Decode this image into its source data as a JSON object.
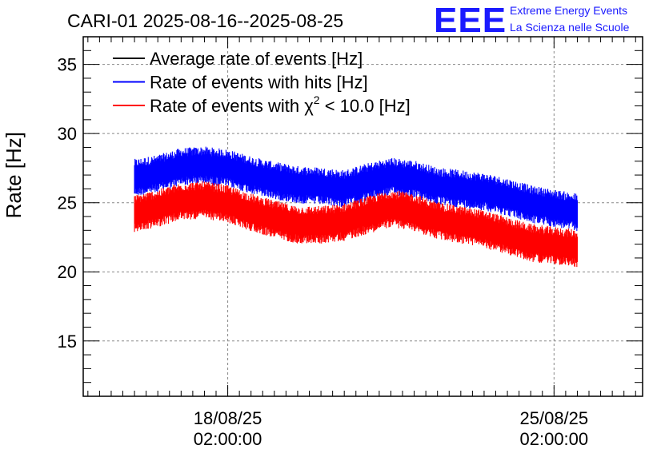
{
  "chart_data": {
    "type": "line",
    "title": "CARI-01 2025-08-16--2025-08-25",
    "ylabel": "Rate [Hz]",
    "xlabel": "",
    "ylim": [
      11,
      37
    ],
    "y_ticks": [
      15,
      20,
      25,
      30,
      35
    ],
    "x_ticks": [
      {
        "date": "18/08/25",
        "time": "02:00:00",
        "day": 2.0
      },
      {
        "date": "25/08/25",
        "time": "02:00:00",
        "day": 9.0
      }
    ],
    "xlim_days": [
      -1.1,
      10.9
    ],
    "grid": true,
    "legend_position": "top-left",
    "legend": [
      {
        "label_pre": "Average rate of events [Hz]",
        "chi": "",
        "sup": "",
        "label_post": "",
        "color": "#000000"
      },
      {
        "label_pre": "Rate of events with hits [Hz]",
        "chi": "",
        "sup": "",
        "label_post": "",
        "color": "#0000ff"
      },
      {
        "label_pre": "Rate of events with ",
        "chi": "χ",
        "sup": "2",
        "label_post": " < 10.0 [Hz]",
        "color": "#ff0000"
      }
    ],
    "x_unit": "days since 2025-08-16 02:00:00",
    "series": [
      {
        "name": "Rate of events with hits [Hz]",
        "color": "#0000ff",
        "x": [
          0.0,
          0.5,
          1.0,
          1.5,
          2.0,
          2.5,
          3.0,
          3.5,
          4.0,
          4.5,
          5.0,
          5.5,
          6.0,
          6.5,
          7.0,
          7.5,
          8.0,
          8.5,
          9.0,
          9.5
        ],
        "y": [
          26.8,
          27.1,
          27.6,
          27.7,
          27.5,
          27.0,
          26.6,
          26.3,
          26.2,
          26.0,
          26.5,
          26.9,
          26.7,
          26.2,
          26.0,
          25.8,
          25.4,
          24.9,
          24.6,
          24.3
        ],
        "spread": 1.3
      },
      {
        "name": "Rate of events with χ2 < 10.0 [Hz]",
        "color": "#ff0000",
        "x": [
          0.0,
          0.5,
          1.0,
          1.5,
          2.0,
          2.5,
          3.0,
          3.5,
          4.0,
          4.5,
          5.0,
          5.5,
          6.0,
          6.5,
          7.0,
          7.5,
          8.0,
          8.5,
          9.0,
          9.5
        ],
        "y": [
          24.2,
          24.6,
          25.1,
          25.2,
          24.9,
          24.3,
          23.8,
          23.4,
          23.4,
          23.6,
          24.1,
          24.6,
          24.3,
          23.7,
          23.4,
          23.1,
          22.6,
          22.1,
          21.9,
          21.7
        ],
        "spread": 1.3
      }
    ]
  },
  "logo": {
    "text": "EEE",
    "line1": "Extreme Energy Events",
    "line2": "La Scienza nelle Scuole"
  }
}
